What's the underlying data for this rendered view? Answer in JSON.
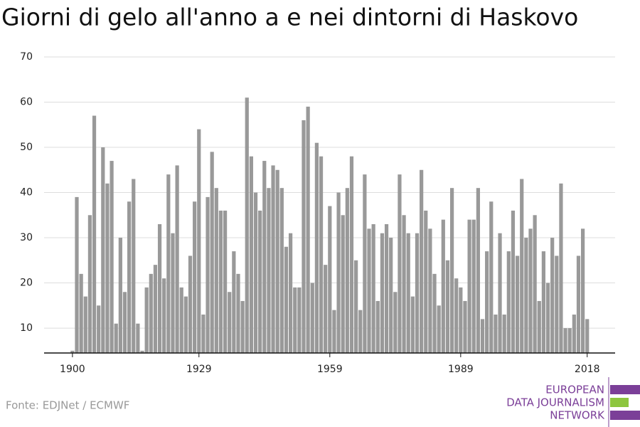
{
  "chart_data": {
    "type": "bar",
    "title": "Giorni di gelo all'anno a e nei dintorni di Haskovo",
    "x": [
      1900,
      1901,
      1902,
      1903,
      1904,
      1905,
      1906,
      1907,
      1908,
      1909,
      1910,
      1911,
      1912,
      1913,
      1914,
      1915,
      1916,
      1917,
      1918,
      1919,
      1920,
      1921,
      1922,
      1923,
      1924,
      1925,
      1926,
      1927,
      1928,
      1929,
      1930,
      1931,
      1932,
      1933,
      1934,
      1935,
      1936,
      1937,
      1938,
      1939,
      1940,
      1941,
      1942,
      1943,
      1944,
      1945,
      1946,
      1947,
      1948,
      1949,
      1950,
      1951,
      1952,
      1953,
      1954,
      1955,
      1956,
      1957,
      1958,
      1959,
      1960,
      1961,
      1962,
      1963,
      1964,
      1965,
      1966,
      1967,
      1968,
      1969,
      1970,
      1971,
      1972,
      1973,
      1974,
      1975,
      1976,
      1977,
      1978,
      1979,
      1980,
      1981,
      1982,
      1983,
      1984,
      1985,
      1986,
      1987,
      1988,
      1989,
      1990,
      1991,
      1992,
      1993,
      1994,
      1995,
      1996,
      1997,
      1998,
      1999,
      2000,
      2001,
      2002,
      2003,
      2004,
      2005,
      2006,
      2007,
      2008,
      2009,
      2010,
      2011,
      2012,
      2013,
      2014,
      2015,
      2016,
      2017,
      2018
    ],
    "values": [
      5,
      39,
      22,
      17,
      35,
      57,
      15,
      50,
      42,
      47,
      11,
      30,
      18,
      38,
      43,
      11,
      5,
      19,
      22,
      24,
      33,
      21,
      44,
      31,
      46,
      19,
      17,
      26,
      38,
      54,
      13,
      39,
      49,
      41,
      36,
      36,
      18,
      27,
      22,
      16,
      61,
      48,
      40,
      36,
      47,
      41,
      46,
      45,
      41,
      28,
      31,
      19,
      19,
      56,
      59,
      20,
      51,
      48,
      24,
      37,
      14,
      40,
      35,
      41,
      48,
      25,
      14,
      44,
      32,
      33,
      16,
      31,
      33,
      30,
      18,
      44,
      35,
      31,
      17,
      31,
      45,
      36,
      32,
      22,
      15,
      34,
      25,
      41,
      21,
      19,
      16,
      34,
      34,
      41,
      12,
      27,
      38,
      13,
      31,
      13,
      27,
      36,
      26,
      43,
      30,
      32,
      35,
      16,
      27,
      20,
      30,
      26,
      42,
      10,
      10,
      13,
      26,
      32,
      12
    ],
    "color": "#999999",
    "xlim": [
      1893.5,
      2024.4
    ],
    "xticks": [
      1900,
      1929,
      1959,
      1989,
      2018
    ],
    "ylim": [
      4.5,
      70
    ],
    "yticks": [
      10,
      20,
      30,
      40,
      50,
      60,
      70
    ],
    "grid": true,
    "source": "Fonte: EDJNet / ECMWF",
    "logo": [
      "EUROPEAN",
      "DATA JOURNALISM",
      "NETWORK"
    ]
  }
}
